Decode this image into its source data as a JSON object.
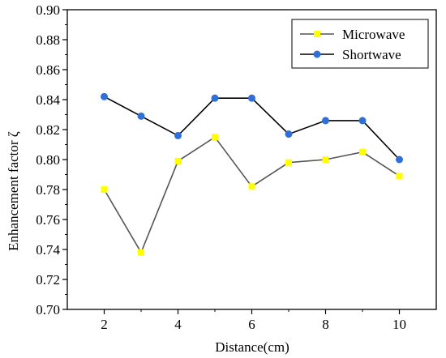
{
  "chart_data": {
    "type": "line",
    "title": "",
    "xlabel": "Distance(cm)",
    "ylabel": "Enhancement factor ζ",
    "xlim": [
      1,
      11
    ],
    "ylim": [
      0.7,
      0.9
    ],
    "x_ticks": [
      "2",
      "4",
      "6",
      "8",
      "10"
    ],
    "y_ticks": [
      "0.70",
      "0.72",
      "0.74",
      "0.76",
      "0.78",
      "0.80",
      "0.82",
      "0.84",
      "0.86",
      "0.88",
      "0.90"
    ],
    "grid": false,
    "legend_position": "top-right",
    "x": [
      2,
      3,
      4,
      5,
      6,
      7,
      8,
      9,
      10
    ],
    "series": [
      {
        "name": "Microwave",
        "marker": "square",
        "line_color": "#555555",
        "marker_color": "#ffff00",
        "values": [
          0.78,
          0.738,
          0.799,
          0.815,
          0.782,
          0.798,
          0.8,
          0.805,
          0.789
        ]
      },
      {
        "name": "Shortwave",
        "marker": "circle",
        "line_color": "#000000",
        "marker_color": "#2f6fd8",
        "values": [
          0.842,
          0.829,
          0.816,
          0.841,
          0.841,
          0.817,
          0.826,
          0.826,
          0.8
        ]
      }
    ]
  }
}
